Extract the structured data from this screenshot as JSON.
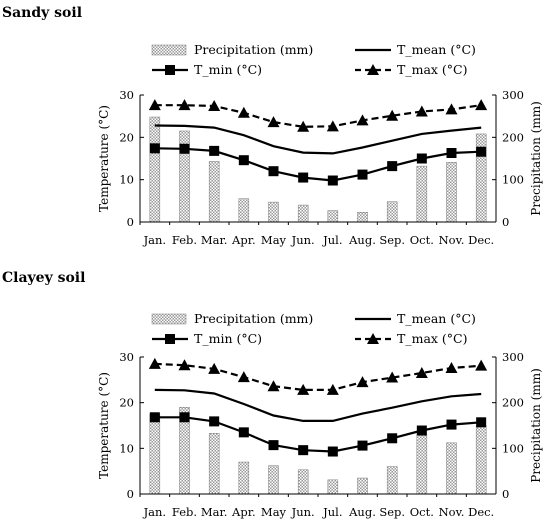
{
  "chart_data": [
    {
      "title": "Sandy soil",
      "type": "bar",
      "categories": [
        "Jan.",
        "Feb.",
        "Mar.",
        "Apr.",
        "May",
        "Jun.",
        "Jul.",
        "Aug.",
        "Sep.",
        "Oct.",
        "Nov.",
        "Dec."
      ],
      "left_axis": {
        "label": "Temperature (°C)",
        "ylim": [
          0,
          30
        ],
        "ticks": [
          0,
          10,
          20,
          30
        ]
      },
      "right_axis": {
        "label": "Precipitation (mm)",
        "ylim": [
          0,
          300
        ],
        "ticks": [
          0,
          100,
          200,
          300
        ]
      },
      "series": [
        {
          "name": "Precipitation (mm)",
          "kind": "bar",
          "axis": "right",
          "values": [
            248,
            215,
            143,
            55,
            47,
            40,
            27,
            23,
            48,
            132,
            141,
            208
          ]
        },
        {
          "name": "T_mean (°C)",
          "kind": "line",
          "axis": "left",
          "values": [
            22.8,
            22.7,
            22.3,
            20.5,
            17.9,
            16.4,
            16.2,
            17.6,
            19.2,
            20.8,
            21.6,
            22.3
          ]
        },
        {
          "name": "T_min (°C)",
          "kind": "line",
          "axis": "left",
          "values": [
            17.4,
            17.3,
            16.8,
            14.6,
            12.0,
            10.5,
            9.8,
            11.2,
            13.2,
            15.0,
            16.3,
            16.6
          ]
        },
        {
          "name": "T_max (°C)",
          "kind": "line",
          "axis": "left",
          "values": [
            27.6,
            27.6,
            27.4,
            25.8,
            23.6,
            22.5,
            22.6,
            24.0,
            25.1,
            26.1,
            26.6,
            27.6
          ]
        }
      ]
    },
    {
      "title": "Clayey soil",
      "type": "bar",
      "categories": [
        "Jan.",
        "Feb.",
        "Mar.",
        "Apr.",
        "May",
        "Jun.",
        "Jul.",
        "Aug.",
        "Sep.",
        "Oct.",
        "Nov.",
        "Dec."
      ],
      "left_axis": {
        "label": "Temperature (°C)",
        "ylim": [
          0,
          30
        ],
        "ticks": [
          0,
          10,
          20,
          30
        ]
      },
      "right_axis": {
        "label": "Precipitation (mm)",
        "ylim": [
          0,
          300
        ],
        "ticks": [
          0,
          100,
          200,
          300
        ]
      },
      "series": [
        {
          "name": "Precipitation (mm)",
          "kind": "bar",
          "axis": "right",
          "values": [
            175,
            190,
            133,
            70,
            62,
            53,
            31,
            35,
            60,
            130,
            112,
            150
          ]
        },
        {
          "name": "T_mean (°C)",
          "kind": "line",
          "axis": "left",
          "values": [
            22.8,
            22.7,
            22.0,
            19.7,
            17.2,
            16.0,
            16.0,
            17.6,
            18.9,
            20.3,
            21.4,
            21.9
          ]
        },
        {
          "name": "T_min (°C)",
          "kind": "line",
          "axis": "left",
          "values": [
            16.8,
            16.8,
            15.9,
            13.5,
            10.7,
            9.6,
            9.3,
            10.6,
            12.2,
            13.9,
            15.2,
            15.7
          ]
        },
        {
          "name": "T_max (°C)",
          "kind": "line",
          "axis": "left",
          "values": [
            28.5,
            28.2,
            27.4,
            25.6,
            23.6,
            22.8,
            22.8,
            24.5,
            25.5,
            26.5,
            27.6,
            28.1
          ]
        }
      ]
    }
  ]
}
